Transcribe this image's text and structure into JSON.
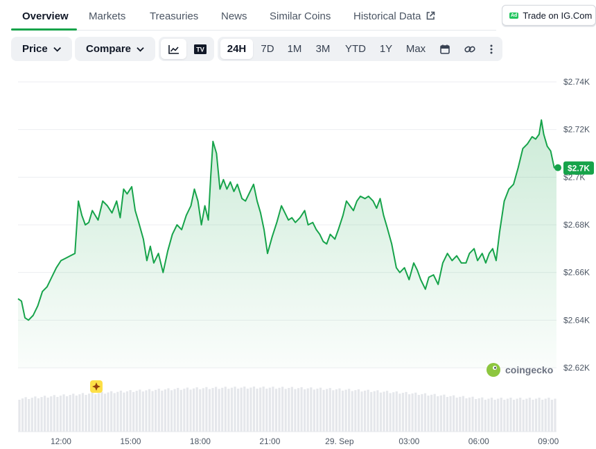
{
  "tabs": [
    "Overview",
    "Markets",
    "Treasuries",
    "News",
    "Similar Coins",
    "Historical Data"
  ],
  "ad": {
    "badge": "Ad",
    "label": "Trade on IG.Com"
  },
  "toolbar": {
    "price_label": "Price",
    "compare_label": "Compare",
    "tradingview_icon": "TV",
    "ranges": [
      "24H",
      "7D",
      "1M",
      "3M",
      "YTD",
      "1Y",
      "Max"
    ],
    "active_range": "24H"
  },
  "watermark": "coingecko",
  "colors": {
    "line": "#16a34a",
    "accent": "#16a34a",
    "grid": "#eceef1",
    "volume": "#e5e7eb",
    "marker": "#fde047"
  },
  "chart_data": {
    "type": "area",
    "y_ticks": [
      "$2.74K",
      "$2.72K",
      "$2.7K",
      "$2.68K",
      "$2.66K",
      "$2.64K",
      "$2.62K"
    ],
    "y_tick_values": [
      2740,
      2720,
      2700,
      2680,
      2660,
      2640,
      2620
    ],
    "x_ticks": [
      "12:00",
      "15:00",
      "18:00",
      "21:00",
      "29. Sep",
      "03:00",
      "06:00",
      "09:00"
    ],
    "x_tick_hours": [
      12,
      15,
      18,
      21,
      24,
      27,
      30,
      33
    ],
    "x_range_hours": [
      10.15,
      33.35
    ],
    "ylim": [
      2620,
      2740
    ],
    "current_price_label": "$2.7K",
    "grid": true,
    "price_series": [
      [
        10.15,
        2649
      ],
      [
        10.3,
        2648
      ],
      [
        10.45,
        2641
      ],
      [
        10.6,
        2640
      ],
      [
        10.8,
        2642
      ],
      [
        11.0,
        2646
      ],
      [
        11.2,
        2652
      ],
      [
        11.4,
        2654
      ],
      [
        11.6,
        2658
      ],
      [
        11.8,
        2662
      ],
      [
        12.0,
        2665
      ],
      [
        12.2,
        2666
      ],
      [
        12.4,
        2667
      ],
      [
        12.6,
        2668
      ],
      [
        12.75,
        2690
      ],
      [
        12.9,
        2684
      ],
      [
        13.05,
        2680
      ],
      [
        13.2,
        2681
      ],
      [
        13.35,
        2686
      ],
      [
        13.6,
        2682
      ],
      [
        13.8,
        2690
      ],
      [
        14.0,
        2688
      ],
      [
        14.2,
        2685
      ],
      [
        14.4,
        2690
      ],
      [
        14.55,
        2683
      ],
      [
        14.7,
        2695
      ],
      [
        14.85,
        2693
      ],
      [
        15.05,
        2696
      ],
      [
        15.2,
        2686
      ],
      [
        15.35,
        2681
      ],
      [
        15.55,
        2674
      ],
      [
        15.7,
        2665
      ],
      [
        15.85,
        2671
      ],
      [
        16.0,
        2664
      ],
      [
        16.2,
        2668
      ],
      [
        16.4,
        2660
      ],
      [
        16.6,
        2669
      ],
      [
        16.8,
        2676
      ],
      [
        17.0,
        2680
      ],
      [
        17.2,
        2678
      ],
      [
        17.4,
        2684
      ],
      [
        17.6,
        2688
      ],
      [
        17.75,
        2695
      ],
      [
        17.9,
        2690
      ],
      [
        18.05,
        2680
      ],
      [
        18.2,
        2688
      ],
      [
        18.35,
        2682
      ],
      [
        18.45,
        2700
      ],
      [
        18.55,
        2715
      ],
      [
        18.7,
        2710
      ],
      [
        18.85,
        2695
      ],
      [
        19.0,
        2699
      ],
      [
        19.15,
        2695
      ],
      [
        19.3,
        2698
      ],
      [
        19.45,
        2694
      ],
      [
        19.6,
        2697
      ],
      [
        19.8,
        2691
      ],
      [
        19.95,
        2690
      ],
      [
        20.1,
        2693
      ],
      [
        20.3,
        2697
      ],
      [
        20.45,
        2690
      ],
      [
        20.6,
        2685
      ],
      [
        20.75,
        2678
      ],
      [
        20.9,
        2668
      ],
      [
        21.1,
        2675
      ],
      [
        21.3,
        2681
      ],
      [
        21.5,
        2688
      ],
      [
        21.65,
        2685
      ],
      [
        21.8,
        2682
      ],
      [
        21.95,
        2683
      ],
      [
        22.1,
        2681
      ],
      [
        22.3,
        2683
      ],
      [
        22.5,
        2686
      ],
      [
        22.65,
        2680
      ],
      [
        22.85,
        2681
      ],
      [
        23.0,
        2678
      ],
      [
        23.15,
        2676
      ],
      [
        23.3,
        2673
      ],
      [
        23.45,
        2672
      ],
      [
        23.6,
        2676
      ],
      [
        23.8,
        2674
      ],
      [
        23.95,
        2678
      ],
      [
        24.15,
        2684
      ],
      [
        24.3,
        2690
      ],
      [
        24.45,
        2688
      ],
      [
        24.6,
        2686
      ],
      [
        24.75,
        2690
      ],
      [
        24.9,
        2692
      ],
      [
        25.1,
        2691
      ],
      [
        25.25,
        2692
      ],
      [
        25.45,
        2690
      ],
      [
        25.6,
        2687
      ],
      [
        25.75,
        2691
      ],
      [
        25.9,
        2684
      ],
      [
        26.05,
        2679
      ],
      [
        26.25,
        2672
      ],
      [
        26.45,
        2662
      ],
      [
        26.6,
        2660
      ],
      [
        26.8,
        2662
      ],
      [
        27.0,
        2657
      ],
      [
        27.2,
        2664
      ],
      [
        27.35,
        2661
      ],
      [
        27.5,
        2657
      ],
      [
        27.7,
        2653
      ],
      [
        27.85,
        2658
      ],
      [
        28.05,
        2659
      ],
      [
        28.25,
        2655
      ],
      [
        28.45,
        2664
      ],
      [
        28.65,
        2668
      ],
      [
        28.85,
        2665
      ],
      [
        29.05,
        2667
      ],
      [
        29.25,
        2664
      ],
      [
        29.45,
        2664
      ],
      [
        29.6,
        2668
      ],
      [
        29.8,
        2670
      ],
      [
        29.95,
        2665
      ],
      [
        30.15,
        2668
      ],
      [
        30.3,
        2664
      ],
      [
        30.45,
        2668
      ],
      [
        30.6,
        2670
      ],
      [
        30.75,
        2665
      ],
      [
        30.9,
        2677
      ],
      [
        31.1,
        2690
      ],
      [
        31.3,
        2695
      ],
      [
        31.5,
        2697
      ],
      [
        31.7,
        2704
      ],
      [
        31.9,
        2712
      ],
      [
        32.1,
        2714
      ],
      [
        32.3,
        2717
      ],
      [
        32.45,
        2716
      ],
      [
        32.6,
        2718
      ],
      [
        32.7,
        2724
      ],
      [
        32.8,
        2718
      ],
      [
        32.95,
        2713
      ],
      [
        33.1,
        2711
      ],
      [
        33.25,
        2704
      ],
      [
        33.35,
        2704
      ]
    ]
  }
}
